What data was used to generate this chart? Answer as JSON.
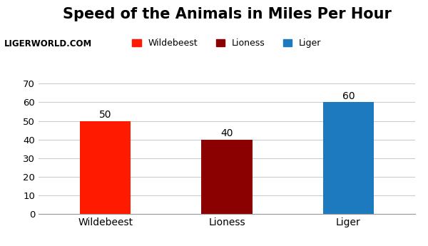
{
  "title": "Speed of the Animals in Miles Per Hour",
  "subtitle": "LIGERWORLD.COM",
  "categories": [
    "Wildebeest",
    "Lioness",
    "Liger"
  ],
  "values": [
    50,
    40,
    60
  ],
  "bar_colors": [
    "#ff1a00",
    "#8b0000",
    "#1e7abf"
  ],
  "legend_labels": [
    "Wildebeest",
    "Lioness",
    "Liger"
  ],
  "legend_colors": [
    "#ff1a00",
    "#8b0000",
    "#1e7abf"
  ],
  "ylim": [
    0,
    70
  ],
  "yticks": [
    0,
    10,
    20,
    30,
    40,
    50,
    60,
    70
  ],
  "title_fontsize": 15,
  "subtitle_fontsize": 8.5,
  "xlabel_fontsize": 10,
  "ylabel_fontsize": 10,
  "annotation_fontsize": 10,
  "legend_fontsize": 9,
  "background_color": "#ffffff",
  "grid_color": "#cccccc"
}
